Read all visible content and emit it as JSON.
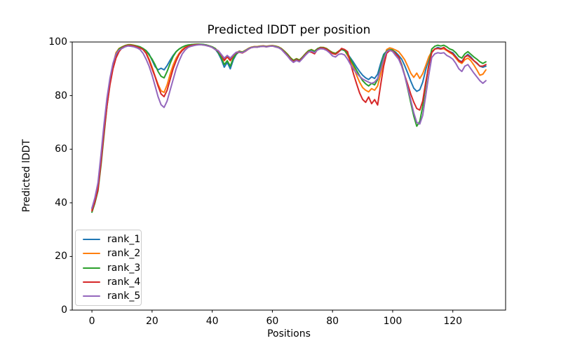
{
  "figure": {
    "background": "#ffffff",
    "frame_color": "#000000"
  },
  "chart_data": {
    "type": "line",
    "title": "Predicted lDDT per position",
    "xlabel": "Positions",
    "ylabel": "Predicted lDDT",
    "xlim": [
      -6.55,
      137.55
    ],
    "ylim": [
      0,
      100
    ],
    "x_ticks": [
      0,
      20,
      40,
      60,
      80,
      100,
      120
    ],
    "y_ticks": [
      0,
      20,
      40,
      60,
      80,
      100
    ],
    "grid": false,
    "legend_position": "lower left",
    "x_start": 0,
    "x_step": 1,
    "x_end": 131,
    "n_points": 132,
    "series": [
      {
        "name": "rank_1",
        "color": "#1f77b4",
        "values": [
          38,
          41.5,
          46,
          56,
          67,
          77,
          85,
          91,
          95,
          97,
          98,
          98.5,
          98.8,
          98.8,
          98.6,
          98.4,
          98,
          97.4,
          96.8,
          95.5,
          93.2,
          90.8,
          89.6,
          90.2,
          89.6,
          91.2,
          93.2,
          95,
          96.4,
          97.4,
          98.1,
          98.5,
          98.8,
          99,
          99,
          99.1,
          99.1,
          99,
          98.8,
          98.5,
          98.1,
          97.4,
          95.8,
          93.6,
          90.6,
          92.4,
          90,
          93.4,
          95.4,
          96.4,
          96.1,
          96.7,
          97.4,
          98,
          98.2,
          98.1,
          98.4,
          98.5,
          98.2,
          98.5,
          98.6,
          98.3,
          98,
          97.4,
          96.4,
          95.2,
          93.9,
          92.8,
          93.5,
          93,
          94.2,
          95.5,
          96.6,
          97,
          96.4,
          97.4,
          97.9,
          97.8,
          97.4,
          96.6,
          95.9,
          95.6,
          96.4,
          97.2,
          96.8,
          95.6,
          94,
          92.4,
          90.6,
          89,
          87.6,
          86.6,
          86,
          87,
          86.4,
          88,
          92,
          95.4,
          96.6,
          97.2,
          96.9,
          96.2,
          95,
          93.6,
          91.2,
          88.4,
          85.4,
          82.8,
          81.6,
          82.2,
          85,
          89.6,
          94,
          96.2,
          97.4,
          98,
          97.6,
          97.8,
          97,
          96.4,
          96,
          94.6,
          93.2,
          92.6,
          94.4,
          95.4,
          94.4,
          93,
          92,
          91,
          90.6,
          91
        ]
      },
      {
        "name": "rank_2",
        "color": "#ff7f0e",
        "values": [
          37.5,
          41,
          45.5,
          55,
          66,
          76.5,
          85,
          91.5,
          96,
          97.6,
          98.2,
          98.7,
          99,
          99,
          98.8,
          98.5,
          98.1,
          97.3,
          96,
          93.6,
          90.6,
          87.2,
          84.2,
          81.8,
          81.2,
          84,
          88,
          91.4,
          94,
          95.8,
          97.2,
          98,
          98.6,
          98.9,
          99.1,
          99.2,
          99.1,
          99,
          98.9,
          98.6,
          98.2,
          97.6,
          96.6,
          95,
          93,
          94.4,
          93,
          94.8,
          96,
          96.6,
          96.3,
          96.9,
          97.6,
          98.1,
          98.3,
          98.3,
          98.5,
          98.6,
          98.4,
          98.6,
          98.7,
          98.5,
          98.2,
          97.6,
          96.6,
          95.5,
          94.2,
          93.2,
          93.8,
          93.3,
          94.4,
          95.7,
          96.8,
          97.2,
          96.6,
          97.5,
          98,
          98,
          97.6,
          96.8,
          96.1,
          95.8,
          96.6,
          97.3,
          97,
          95,
          93,
          90.6,
          87.6,
          85,
          83,
          82,
          81.4,
          82.6,
          82,
          83.6,
          88,
          93,
          97.2,
          97.8,
          97.5,
          97,
          96.4,
          95,
          93.4,
          91,
          88.4,
          86.8,
          88.4,
          86.4,
          88.2,
          91.2,
          94.4,
          96.4,
          97.4,
          97.6,
          97.4,
          97.5,
          96.8,
          96,
          95.4,
          94,
          92.6,
          92,
          93.4,
          94,
          93,
          91.4,
          89.6,
          87.6,
          88,
          89.6
        ]
      },
      {
        "name": "rank_3",
        "color": "#2ca02c",
        "values": [
          36.5,
          40,
          44.5,
          54,
          65,
          76,
          84.5,
          91,
          95.5,
          97.4,
          98.1,
          98.6,
          98.9,
          98.9,
          98.7,
          98.5,
          98.2,
          97.6,
          96.8,
          95.2,
          93.6,
          91.5,
          89,
          87.2,
          86.6,
          89,
          92,
          94.6,
          96.4,
          97.4,
          98.1,
          98.6,
          98.9,
          99,
          99.1,
          99.2,
          99.2,
          99.1,
          98.9,
          98.6,
          98.2,
          97.6,
          96.2,
          94.2,
          91.6,
          93,
          91,
          94,
          95.6,
          96.5,
          96.2,
          96.8,
          97.5,
          98,
          98.2,
          98.2,
          98.4,
          98.5,
          98.3,
          98.5,
          98.6,
          98.4,
          98.1,
          97.5,
          96.5,
          95.4,
          94.1,
          93.1,
          93.7,
          93.2,
          94.3,
          95.6,
          96.7,
          97.1,
          96.5,
          97.5,
          98,
          97.9,
          97.5,
          96.7,
          96,
          95.7,
          96.5,
          97.3,
          96.9,
          95.4,
          93.6,
          91.4,
          89.4,
          87.4,
          85.6,
          84.4,
          83.6,
          84.6,
          84,
          86,
          90.6,
          94.8,
          96.6,
          97.2,
          97,
          95.8,
          94.4,
          91.6,
          87.6,
          82.6,
          77.4,
          72.4,
          68.6,
          70.4,
          76,
          84,
          91.6,
          97.4,
          98.4,
          98.8,
          98.5,
          98.8,
          98.2,
          97.4,
          97,
          96,
          94.6,
          94,
          95.6,
          96.4,
          95.4,
          94.4,
          93.6,
          92.6,
          92,
          92.6
        ]
      },
      {
        "name": "rank_4",
        "color": "#d62728",
        "values": [
          37,
          40.5,
          45,
          55,
          66,
          76,
          84,
          90,
          94,
          96.4,
          97.8,
          98.4,
          98.7,
          98.7,
          98.5,
          98.2,
          97.8,
          97.2,
          95.8,
          93.2,
          90,
          87,
          83.6,
          80.6,
          79.6,
          82,
          86,
          90,
          93,
          95.4,
          96.8,
          97.8,
          98.4,
          98.7,
          98.9,
          99,
          99,
          98.9,
          98.7,
          98.4,
          98,
          97.2,
          96.6,
          95.2,
          93.2,
          94.6,
          93.2,
          95,
          96,
          96.2,
          95.9,
          96.5,
          97.3,
          97.9,
          98.1,
          98.1,
          98.3,
          98.4,
          98.2,
          98.4,
          98.5,
          98.2,
          97.9,
          97.3,
          96.2,
          95,
          93.7,
          92.7,
          93.4,
          92.9,
          94,
          95.3,
          96.4,
          96.2,
          95.6,
          97.2,
          97.8,
          97.7,
          97.3,
          96.5,
          95.7,
          95.4,
          96.3,
          97.6,
          97.2,
          96.4,
          92,
          88,
          84.4,
          81,
          78.6,
          77.5,
          79.5,
          77,
          78.5,
          76.5,
          84,
          91,
          95.8,
          96.8,
          96.6,
          95.6,
          94.6,
          91.2,
          87.6,
          84.2,
          80.6,
          77.6,
          75.2,
          74.6,
          78,
          85,
          91,
          96,
          97.4,
          97.6,
          97.4,
          98,
          97,
          96.4,
          95.6,
          94.4,
          93,
          92.4,
          94.4,
          95,
          94,
          93,
          92.2,
          91,
          91,
          91.6
        ]
      },
      {
        "name": "rank_5",
        "color": "#9467bd",
        "values": [
          38,
          42,
          47.5,
          58,
          69,
          79,
          86.5,
          92,
          95.5,
          97,
          97.6,
          98.2,
          98.5,
          98.4,
          98.2,
          97.8,
          97.2,
          95.8,
          93.6,
          91,
          87.6,
          83.6,
          79.6,
          76.6,
          75.6,
          78,
          82,
          86,
          90,
          93,
          95.5,
          97,
          98,
          98.4,
          98.7,
          98.9,
          99,
          98.9,
          98.7,
          98.4,
          98,
          97.2,
          96.8,
          95.4,
          94,
          95,
          94,
          95.2,
          96.2,
          96.3,
          96,
          96.6,
          97.4,
          97.9,
          98.1,
          98.1,
          98.3,
          98.4,
          98.2,
          98.4,
          98.5,
          98.2,
          97.9,
          97.2,
          96,
          94.8,
          93.4,
          92.4,
          93.1,
          92.6,
          93.8,
          95.1,
          96.2,
          96.6,
          96,
          97,
          97.5,
          97.4,
          96.9,
          96,
          94.8,
          94.4,
          95.4,
          95.6,
          95.2,
          93.6,
          91.6,
          89.8,
          88.4,
          87.2,
          86.2,
          85.6,
          85,
          84.6,
          85,
          86.4,
          89.6,
          93.6,
          96.4,
          97,
          96.4,
          95,
          93.6,
          91,
          87.4,
          83,
          78.4,
          73.6,
          70,
          69.4,
          72.6,
          80,
          87.6,
          94.2,
          95.6,
          96,
          95.8,
          96,
          95,
          94.4,
          93.6,
          92,
          90,
          89,
          91,
          91.6,
          90,
          88.4,
          87,
          85.6,
          84.6,
          85.6
        ]
      }
    ]
  }
}
